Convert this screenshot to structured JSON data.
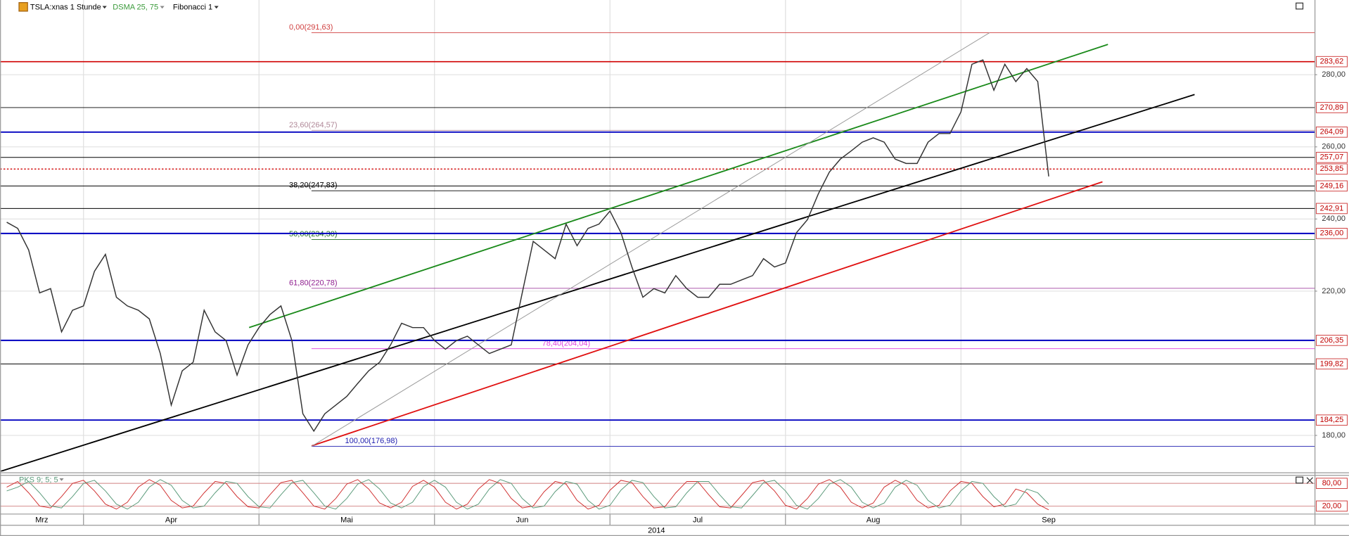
{
  "chart_data": {
    "type": "line",
    "title": "TSLA:xnas 1 Stunde",
    "indicators": [
      "DSMA 25, 75",
      "Fibonacci 1"
    ],
    "x_label": "2014",
    "categories": [
      "Mrz",
      null,
      null,
      null,
      null,
      null,
      null,
      "Apr",
      null,
      null,
      null,
      null,
      null,
      null,
      null,
      null,
      null,
      null,
      null,
      null,
      null,
      null,
      null,
      "Mai",
      null,
      null,
      null,
      null,
      null,
      null,
      null,
      null,
      null,
      null,
      null,
      null,
      null,
      null,
      null,
      "Jun",
      null,
      null,
      null,
      null,
      null,
      null,
      null,
      null,
      null,
      null,
      null,
      null,
      null,
      null,
      null,
      "Jul",
      null,
      null,
      null,
      null,
      null,
      null,
      null,
      null,
      null,
      null,
      null,
      null,
      null,
      null,
      null,
      "Aug",
      null,
      null,
      null,
      null,
      null,
      null,
      null,
      null,
      null,
      null,
      null,
      null,
      null,
      null,
      null,
      "Sep",
      null,
      null,
      null,
      null,
      null,
      null,
      null,
      null
    ],
    "values": [
      239.1,
      237.4,
      231.4,
      219.5,
      220.7,
      208.7,
      214.7,
      215.9,
      225.5,
      230.2,
      218.3,
      215.9,
      214.7,
      212.3,
      202.7,
      188.4,
      197.9,
      200.3,
      214.7,
      208.7,
      206.3,
      196.7,
      205.1,
      209.9,
      213.5,
      215.9,
      206.3,
      186.0,
      181.2,
      186.0,
      188.4,
      190.8,
      194.4,
      197.9,
      200.3,
      205.1,
      211.1,
      209.9,
      209.9,
      206.3,
      203.9,
      206.3,
      207.5,
      205.1,
      202.7,
      203.9,
      205.1,
      219.5,
      233.8,
      231.4,
      229.0,
      238.6,
      232.6,
      237.4,
      238.6,
      242.2,
      236.2,
      226.7,
      218.3,
      220.7,
      219.5,
      224.3,
      220.7,
      218.3,
      218.3,
      221.9,
      221.9,
      223.1,
      224.3,
      229.0,
      226.7,
      227.8,
      236.2,
      239.8,
      247.0,
      253.0,
      256.6,
      258.9,
      261.3,
      262.5,
      261.3,
      256.6,
      255.4,
      255.4,
      261.3,
      263.7,
      263.7,
      269.7,
      282.9,
      284.1,
      275.7,
      282.9,
      278.1,
      281.7,
      278.1,
      251.8
    ],
    "color": "#333333",
    "ylim": [
      170,
      300
    ],
    "yticks": [
      {
        "value": 280,
        "label": "280,00"
      },
      {
        "value": 260,
        "label": "260,00"
      },
      {
        "value": 240,
        "label": "240,00"
      },
      {
        "value": 220,
        "label": "220,00"
      },
      {
        "value": 180,
        "label": "180,00"
      }
    ],
    "grid": true,
    "levels": [
      {
        "value": 283.62,
        "label": "283,62",
        "color": "#d00000",
        "style": "solid"
      },
      {
        "value": 270.89,
        "label": "270,89",
        "color": "#000000",
        "style": "thin"
      },
      {
        "value": 264.09,
        "label": "264,09",
        "color": "#0000c0",
        "style": "thick"
      },
      {
        "value": 257.07,
        "label": "257,07",
        "color": "#000000",
        "style": "thin"
      },
      {
        "value": 253.85,
        "label": "253,85",
        "color": "#d00000",
        "style": "dotted"
      },
      {
        "value": 249.16,
        "label": "249,16",
        "color": "#000000",
        "style": "thin"
      },
      {
        "value": 242.91,
        "label": "242,91",
        "color": "#000000",
        "style": "thin"
      },
      {
        "value": 236.0,
        "label": "236,00",
        "color": "#0000c0",
        "style": "thick"
      },
      {
        "value": 206.35,
        "label": "206,35",
        "color": "#0000c0",
        "style": "thick"
      },
      {
        "value": 199.82,
        "label": "199,82",
        "color": "#000000",
        "style": "thin"
      },
      {
        "value": 184.25,
        "label": "184,25",
        "color": "#0000c0",
        "style": "thick"
      }
    ],
    "fibonacci": [
      {
        "value": 291.63,
        "label": "0,00(291,63)",
        "color": "#d04040"
      },
      {
        "value": 264.57,
        "label": "23,60(264,57)",
        "color": "#b08898"
      },
      {
        "value": 247.83,
        "label": "38,20(247,83)",
        "color": "#000000"
      },
      {
        "value": 234.3,
        "label": "50,00(234,30)",
        "color": "#207020"
      },
      {
        "value": 220.78,
        "label": "61,80(220,78)",
        "color": "#902090"
      },
      {
        "value": 204.04,
        "label": "78,40(204,04)",
        "color": "#e040e0"
      },
      {
        "value": 176.98,
        "label": "100,00(176,98)",
        "color": "#2020b0"
      }
    ],
    "trendlines": [
      {
        "color": "#1a8a1a",
        "x": [
          22.1,
          100.4
        ],
        "values": [
          209.9,
          288.4
        ]
      },
      {
        "color": "#000000",
        "x": [
          -0.6,
          108.3
        ],
        "values": [
          170.0,
          274.5
        ]
      },
      {
        "color": "#e01010",
        "x": [
          27.8,
          99.9
        ],
        "values": [
          177.1,
          250.3
        ]
      },
      {
        "color": "#999999",
        "x": [
          27.8,
          89.6
        ],
        "values": [
          176.98,
          291.63
        ]
      }
    ],
    "oscillator": {
      "type": "line",
      "title": "PKS 9; 5; 5",
      "ylim": [
        0,
        100
      ],
      "yticks": [
        {
          "value": 80,
          "label": "80,00"
        },
        {
          "value": 20,
          "label": "20,00"
        }
      ],
      "series": [
        {
          "color": "#d03030",
          "values": [
            70,
            85,
            55,
            20,
            15,
            45,
            80,
            88,
            60,
            25,
            12,
            30,
            70,
            90,
            75,
            35,
            15,
            20,
            55,
            85,
            80,
            45,
            18,
            15,
            50,
            82,
            88,
            55,
            20,
            12,
            40,
            78,
            90,
            65,
            28,
            15,
            30,
            72,
            88,
            70,
            30,
            12,
            25,
            65,
            90,
            80,
            40,
            15,
            20,
            58,
            85,
            78,
            35,
            12,
            22,
            62,
            88,
            82,
            45,
            15,
            18,
            55,
            85,
            85,
            50,
            18,
            15,
            48,
            82,
            88,
            60,
            22,
            12,
            40,
            78,
            90,
            70,
            30,
            15,
            28,
            70,
            88,
            75,
            35,
            15,
            22,
            60,
            85,
            80,
            45,
            18,
            25,
            65,
            55,
            25,
            10
          ]
        },
        {
          "color": "#5a9a7a",
          "values": [
            60,
            70,
            85,
            55,
            20,
            15,
            45,
            80,
            88,
            60,
            25,
            12,
            30,
            70,
            90,
            75,
            35,
            15,
            20,
            55,
            85,
            80,
            45,
            18,
            15,
            50,
            82,
            88,
            55,
            20,
            12,
            40,
            78,
            90,
            65,
            28,
            15,
            30,
            72,
            88,
            70,
            30,
            12,
            25,
            65,
            90,
            80,
            40,
            15,
            20,
            58,
            85,
            78,
            35,
            12,
            22,
            62,
            88,
            82,
            45,
            15,
            18,
            55,
            85,
            85,
            50,
            18,
            15,
            48,
            82,
            88,
            60,
            22,
            12,
            40,
            78,
            90,
            70,
            30,
            15,
            28,
            70,
            88,
            75,
            35,
            15,
            22,
            60,
            85,
            80,
            45,
            18,
            25,
            65,
            55,
            25
          ]
        }
      ]
    }
  }
}
